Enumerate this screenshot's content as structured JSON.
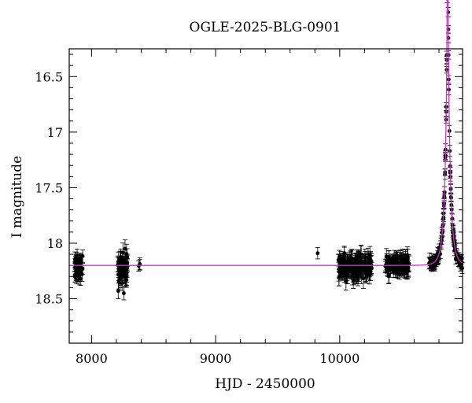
{
  "chart_data": {
    "type": "scatter",
    "title": "OGLE-2025-BLG-0901",
    "xlabel": "HJD - 2450000",
    "ylabel": "I magnitude",
    "xlim": [
      7820,
      10990
    ],
    "ylim": [
      18.9,
      16.25
    ],
    "y_inverted": true,
    "grid": false,
    "x_ticks": {
      "major": [
        8000,
        9000,
        10000
      ],
      "minor_step": 200
    },
    "y_ticks": {
      "major": [
        16.5,
        17,
        17.5,
        18,
        18.5
      ],
      "minor_step": 0.1
    },
    "x_tick_labels": [
      "8000",
      "9000",
      "10000"
    ],
    "y_tick_labels": [
      "16.5",
      "17",
      "17.5",
      "18",
      "18.5"
    ],
    "colors": {
      "data": "#000000",
      "model": "#cc33cc"
    },
    "model": {
      "name": "",
      "baseline": 18.2,
      "t0": 10870,
      "u0": 0.06,
      "tE": 42,
      "fs": 1.0
    },
    "series": [
      {
        "name": "",
        "groups": [
          {
            "x_range": [
              7860,
              7930
            ],
            "n": 55,
            "y_mean": 18.23,
            "y_sd": 0.05,
            "err_mean": 0.06
          },
          {
            "x_range": [
              8210,
              8290
            ],
            "n": 60,
            "y_mean": 18.23,
            "y_sd": 0.06,
            "err_mean": 0.07
          },
          {
            "x_range": [
              8375,
              8395
            ],
            "n": 3,
            "y_mean": 18.19,
            "y_sd": 0.04,
            "err_mean": 0.05
          },
          {
            "x_range": [
              9815,
              9825
            ],
            "n": 1,
            "y_mean": 18.09,
            "y_sd": 0.0,
            "err_mean": 0.06
          },
          {
            "x_range": [
              9990,
              10260
            ],
            "n": 160,
            "y_mean": 18.21,
            "y_sd": 0.05,
            "err_mean": 0.07
          },
          {
            "x_range": [
              10360,
              10560
            ],
            "n": 110,
            "y_mean": 18.19,
            "y_sd": 0.04,
            "err_mean": 0.06
          },
          {
            "x_range": [
              10720,
              10990
            ],
            "n": 150,
            "follows_model": true,
            "y_sd": 0.025,
            "err_mean": 0.04
          }
        ],
        "extra_points": [
          {
            "x": 10530,
            "y": 18.11,
            "err": 0.05
          },
          {
            "x": 10460,
            "y": 18.12,
            "err": 0.05
          },
          {
            "x": 8215,
            "y": 18.43,
            "err": 0.07
          },
          {
            "x": 8260,
            "y": 18.45,
            "err": 0.06
          },
          {
            "x": 8270,
            "y": 18.05,
            "err": 0.08
          }
        ]
      }
    ]
  }
}
